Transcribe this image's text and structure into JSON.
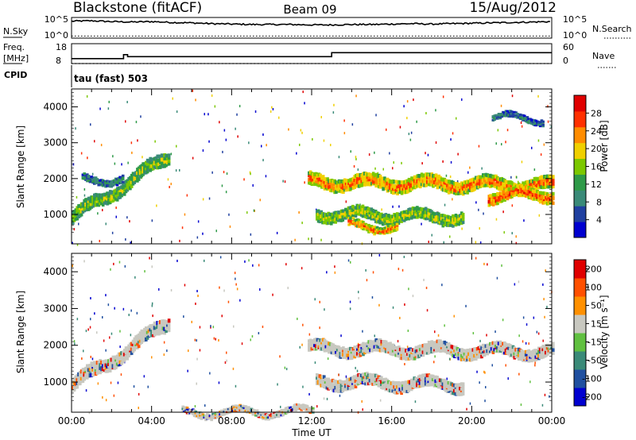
{
  "header": {
    "title_left": "Blackstone (fitACF)",
    "title_center": "Beam 09",
    "title_right": "15/Aug/2012"
  },
  "aux": {
    "nsky_label": "N.Sky",
    "nsky_ticks": [
      "10^5",
      "10^0"
    ],
    "nsearch_label": "N.Search",
    "nsearch_ticks": [
      "10^5",
      "10^0"
    ],
    "freq_label": "Freq.",
    "freq_unit": "[MHz]",
    "freq_ticks": [
      "18",
      "8"
    ],
    "nave_label": "Nave",
    "nave_ticks": [
      "60",
      "0"
    ],
    "cpid_label": "CPID",
    "cpid_value": "tau (fast) 503"
  },
  "chart_data": [
    {
      "type": "line",
      "name": "noise",
      "series": [
        {
          "name": "N.Sky",
          "style": "solid",
          "x": [
            0,
            1,
            2,
            3,
            4,
            5,
            6,
            7,
            8,
            9,
            10,
            11,
            12,
            13,
            14,
            15,
            16,
            17,
            18,
            19,
            20,
            21,
            22,
            23,
            24
          ],
          "y": [
            4.1,
            4.2,
            4.0,
            3.9,
            4.0,
            3.8,
            3.7,
            3.5,
            3.4,
            3.3,
            3.3,
            3.3,
            3.2,
            3.2,
            3.3,
            3.3,
            3.4,
            3.5,
            3.4,
            3.5,
            3.6,
            3.7,
            3.8,
            3.9,
            4.0
          ]
        },
        {
          "name": "N.Search",
          "style": "dotted",
          "x": [
            0,
            24
          ],
          "y": [
            0.5,
            0.5
          ]
        }
      ],
      "xlim": [
        0,
        24
      ],
      "ylim": [
        0,
        5
      ]
    },
    {
      "type": "line",
      "name": "frequency",
      "series": [
        {
          "name": "Freq.",
          "style": "solid",
          "x": [
            0,
            2.6,
            2.6,
            2.8,
            2.8,
            13,
            13,
            24
          ],
          "y": [
            10.5,
            10.5,
            12.5,
            12.5,
            11.5,
            11.5,
            13.5,
            13.5
          ]
        },
        {
          "name": "Nave",
          "style": "dotted",
          "x": [
            0,
            24
          ],
          "y": [
            8,
            8
          ]
        }
      ],
      "xlim": [
        0,
        24
      ],
      "ylim": [
        8,
        18
      ]
    },
    {
      "type": "heatmap",
      "name": "power",
      "xlabel": "",
      "ylabel": "Slant Range [km]",
      "xlim": [
        0,
        24
      ],
      "ylim": [
        180,
        4500
      ],
      "yticks": [
        1000,
        2000,
        3000,
        4000
      ],
      "colorbar": {
        "label": "Power [dB]",
        "ticks": [
          4,
          8,
          12,
          16,
          20,
          24,
          28
        ],
        "range": [
          0,
          32
        ],
        "colors": [
          "#0000d0",
          "#2040a0",
          "#3a8a78",
          "#2e9a48",
          "#7cc800",
          "#f0d000",
          "#ff8c00",
          "#ff3000",
          "#e00000"
        ]
      },
      "bands": [
        {
          "x": [
            0,
            4.8
          ],
          "r0": [
            1000,
            2700
          ],
          "w": 350,
          "level": 0.55
        },
        {
          "x": [
            0.5,
            2.5
          ],
          "r0": [
            2000,
            2050
          ],
          "w": 180,
          "level": 0.3
        },
        {
          "x": [
            11.8,
            24
          ],
          "r0": [
            2000,
            1900
          ],
          "w": 350,
          "level": 0.85
        },
        {
          "x": [
            12.2,
            19.5
          ],
          "r0": [
            1100,
            1000
          ],
          "w": 300,
          "level": 0.6
        },
        {
          "x": [
            13.8,
            16.2
          ],
          "r0": [
            750,
            700
          ],
          "w": 200,
          "level": 0.9
        },
        {
          "x": [
            20.8,
            24
          ],
          "r0": [
            1600,
            1650
          ],
          "w": 300,
          "level": 0.95
        },
        {
          "x": [
            21,
            23.5
          ],
          "r0": [
            3750,
            3700
          ],
          "w": 150,
          "level": 0.25
        }
      ]
    },
    {
      "type": "heatmap",
      "name": "velocity",
      "xlabel": "Time UT",
      "ylabel": "Slant Range [km]",
      "xlim": [
        0,
        24
      ],
      "ylim": [
        180,
        4500
      ],
      "yticks": [
        1000,
        2000,
        3000,
        4000
      ],
      "xticks": [
        "00:00",
        "04:00",
        "08:00",
        "12:00",
        "16:00",
        "20:00",
        "00:00"
      ],
      "colorbar": {
        "label": "Velocity [m s⁻¹]",
        "ticks": [
          200,
          100,
          50,
          15,
          -15,
          -50,
          -100,
          -200
        ],
        "colors": [
          "#0000d0",
          "#2050a0",
          "#3a8a78",
          "#60c040",
          "#c8c8c0",
          "#ff9000",
          "#ff5000",
          "#e00000"
        ]
      },
      "bands": [
        {
          "x": [
            0,
            4.8
          ],
          "r0": [
            1000,
            2700
          ],
          "w": 350,
          "level": 0.5
        },
        {
          "x": [
            11.8,
            24
          ],
          "r0": [
            2000,
            1900
          ],
          "w": 300,
          "level": 0.5
        },
        {
          "x": [
            12.2,
            19.5
          ],
          "r0": [
            1100,
            1000
          ],
          "w": 300,
          "level": 0.5
        },
        {
          "x": [
            5.5,
            12
          ],
          "r0": [
            200,
            250
          ],
          "w": 150,
          "level": 0.3
        }
      ]
    }
  ]
}
